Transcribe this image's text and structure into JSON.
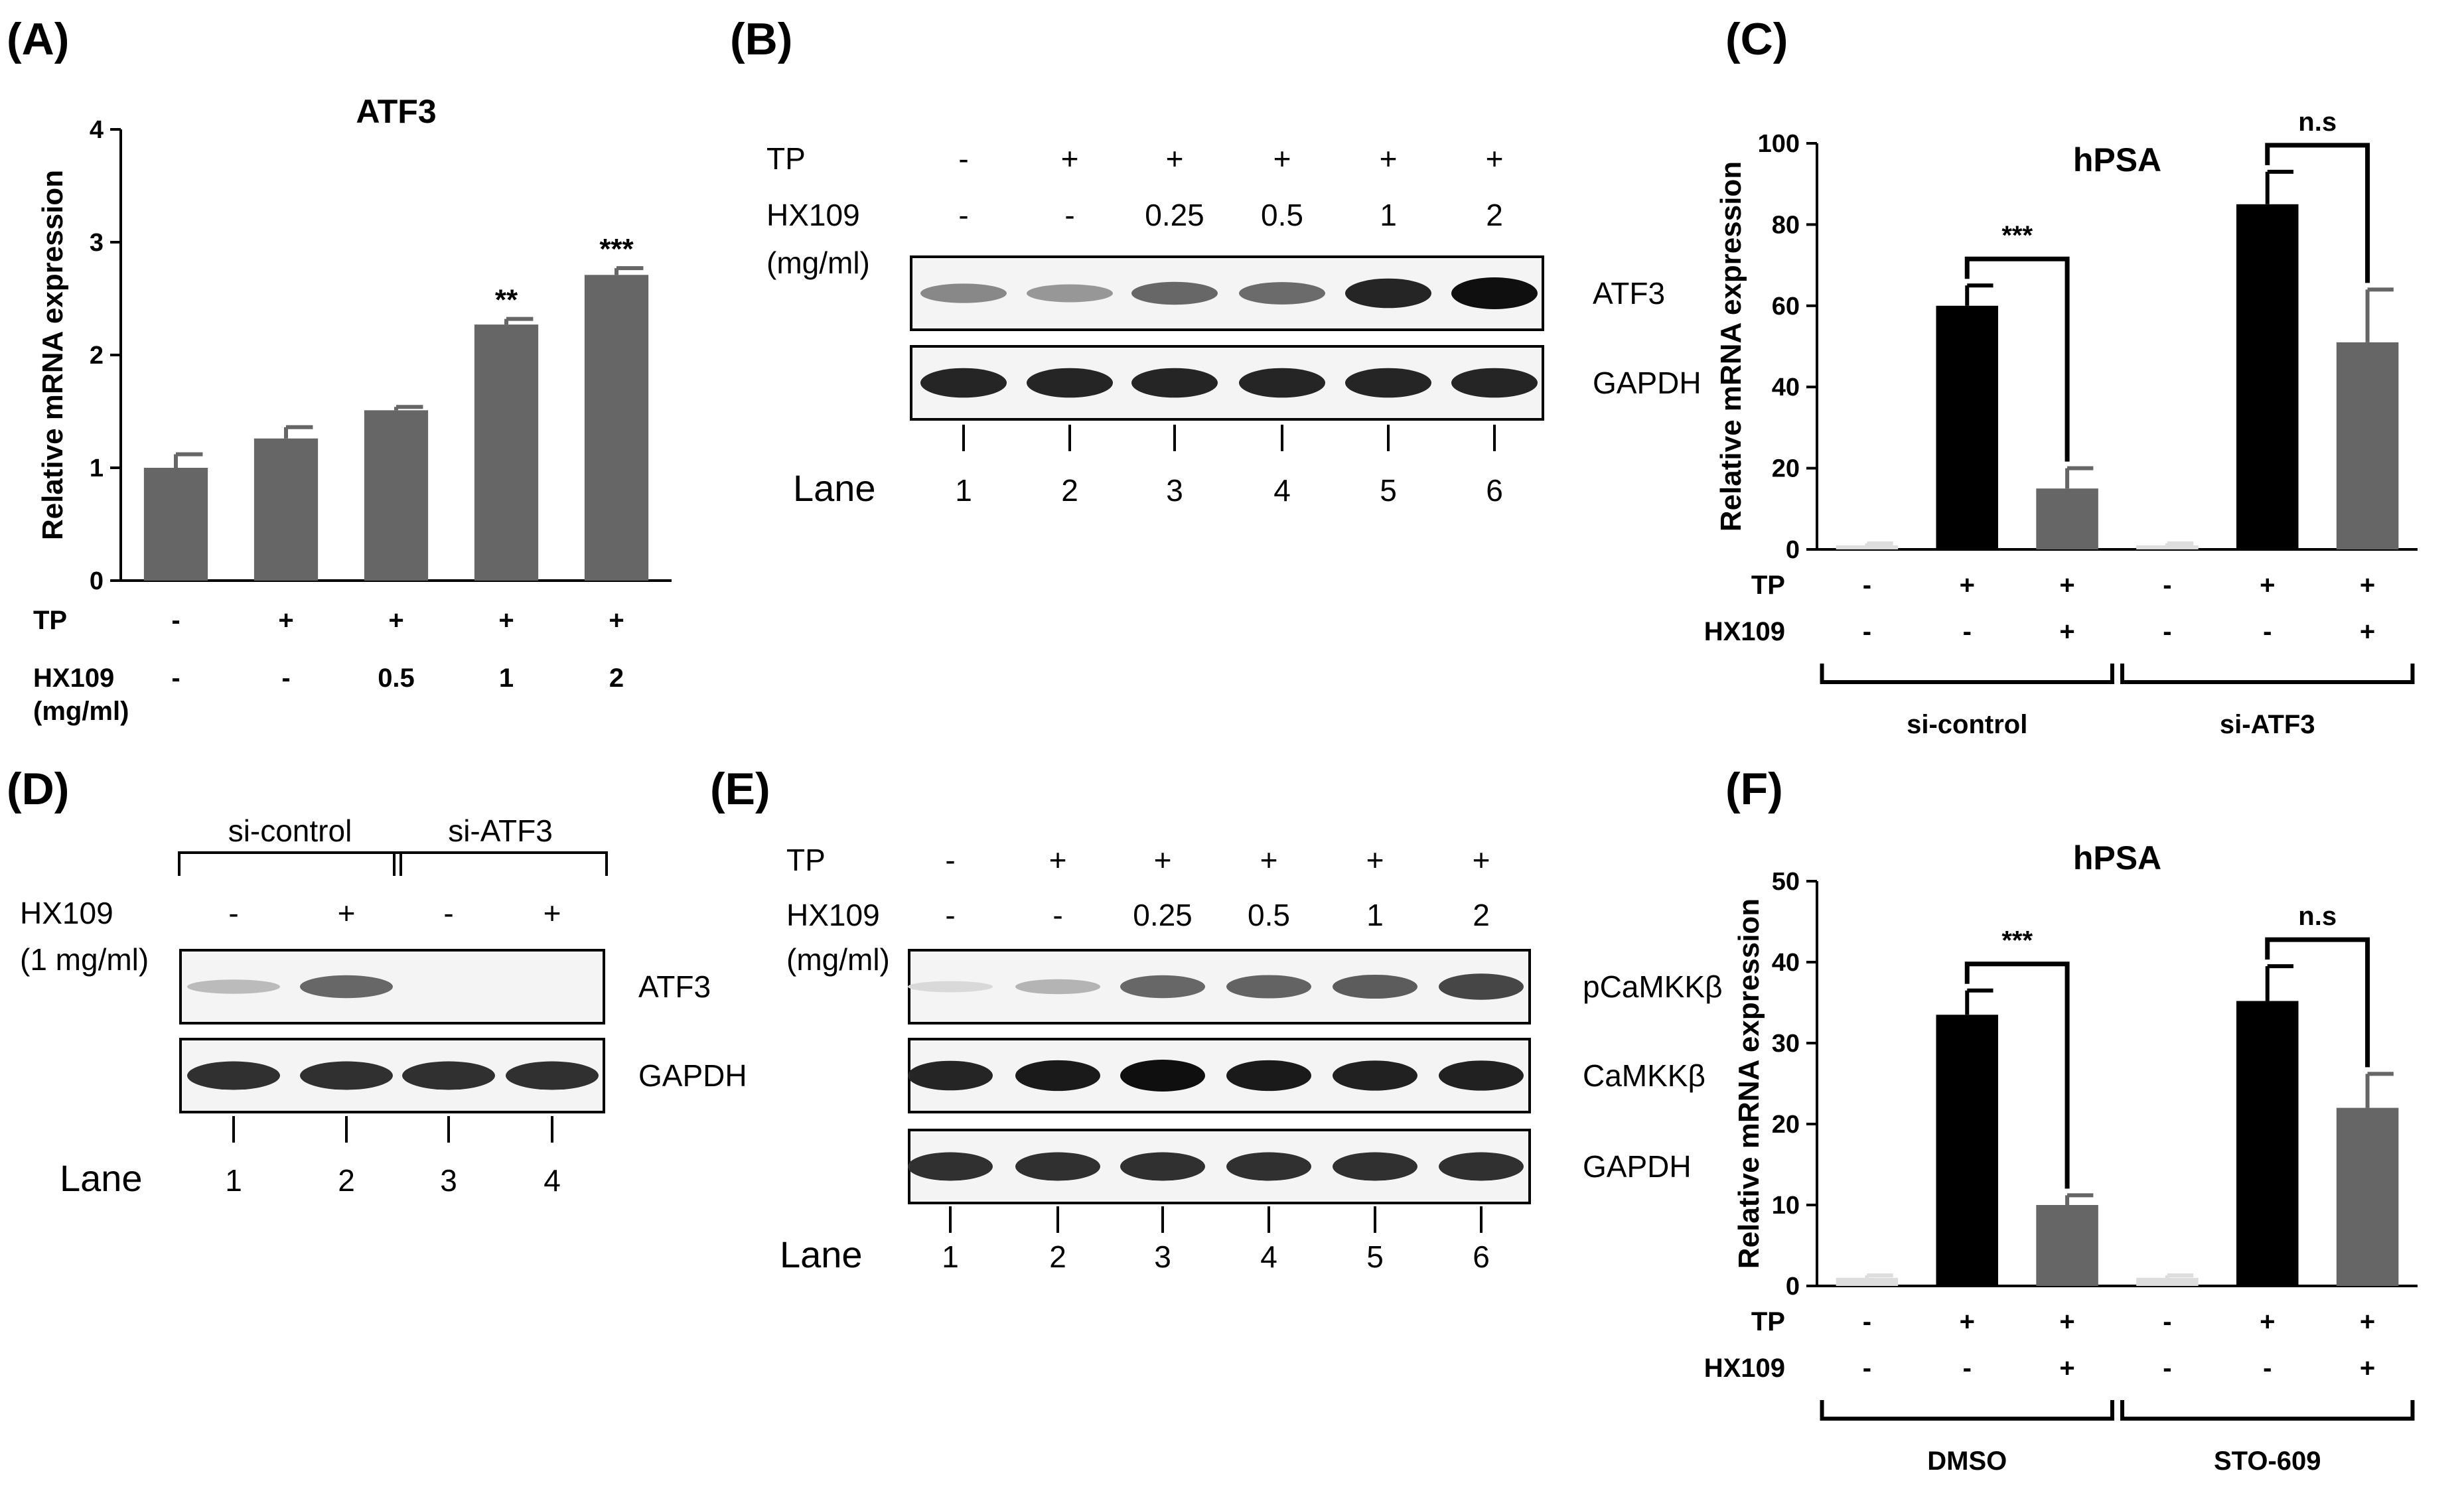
{
  "panels": [
    {
      "id": "A",
      "label": "(A)",
      "type": "bar",
      "title": "ATF3",
      "ylabel": "Relative mRNA expression",
      "ylim": [
        0,
        4
      ],
      "yticks": [
        0,
        1,
        2,
        3,
        4
      ],
      "rows": [
        {
          "label": "TP",
          "values": [
            "-",
            "+",
            "+",
            "+",
            "+"
          ]
        },
        {
          "label": "HX109",
          "values": [
            "-",
            "-",
            "0.5",
            "1",
            "2"
          ]
        }
      ],
      "row_unit": "(mg/ml)",
      "values": [
        1.0,
        1.26,
        1.51,
        2.27,
        2.71
      ],
      "errors": [
        0.12,
        0.1,
        0.03,
        0.05,
        0.06
      ],
      "significance": [
        "",
        "",
        "",
        "**",
        "***"
      ],
      "bar_color": "#666666"
    },
    {
      "id": "B",
      "label": "(B)",
      "type": "blot",
      "rows": [
        {
          "label": "TP",
          "values": [
            "-",
            "+",
            "+",
            "+",
            "+",
            "+"
          ]
        },
        {
          "label": "HX109",
          "values": [
            "-",
            "-",
            "0.25",
            "0.5",
            "1",
            "2"
          ]
        }
      ],
      "row_unit": "(mg/ml)",
      "blots": [
        {
          "label": "ATF3",
          "intensities": [
            0.45,
            0.38,
            0.6,
            0.58,
            0.9,
            1.0
          ]
        },
        {
          "label": "GAPDH",
          "intensities": [
            0.9,
            0.9,
            0.9,
            0.9,
            0.9,
            0.9
          ]
        }
      ],
      "lane_label": "Lane",
      "lanes": [
        "1",
        "2",
        "3",
        "4",
        "5",
        "6"
      ]
    },
    {
      "id": "C",
      "label": "(C)",
      "type": "bar",
      "title": "hPSA",
      "ylabel": "Relative mRNA expression",
      "ylim": [
        0,
        100
      ],
      "yticks": [
        0,
        20,
        40,
        60,
        80,
        100
      ],
      "rows": [
        {
          "label": "TP",
          "values": [
            "-",
            "+",
            "+",
            "-",
            "+",
            "+"
          ]
        },
        {
          "label": "HX109",
          "values": [
            "-",
            "-",
            "+",
            "-",
            "-",
            "+"
          ]
        }
      ],
      "values": [
        1,
        60,
        15,
        1,
        85,
        51
      ],
      "errors": [
        0.5,
        5,
        5,
        0.5,
        8,
        13
      ],
      "bar_colors": [
        "#dddddd",
        "#000000",
        "#666666",
        "#dddddd",
        "#000000",
        "#666666"
      ],
      "comparisons": [
        {
          "from": 1,
          "to": 2,
          "text": "***"
        },
        {
          "from": 4,
          "to": 5,
          "text": "n.s"
        }
      ],
      "groups": [
        {
          "label": "si-control",
          "from": 0,
          "to": 2
        },
        {
          "label": "si-ATF3",
          "from": 3,
          "to": 5
        }
      ]
    },
    {
      "id": "D",
      "label": "(D)",
      "type": "blot",
      "groups": [
        {
          "label": "si-control",
          "from": 0,
          "to": 1
        },
        {
          "label": "si-ATF3",
          "from": 2,
          "to": 3
        }
      ],
      "rows": [
        {
          "label": "HX109",
          "values": [
            "-",
            "+",
            "-",
            "+"
          ]
        }
      ],
      "row_unit": "(1 mg/ml)",
      "blots": [
        {
          "label": "ATF3",
          "intensities": [
            0.22,
            0.6,
            0.0,
            0.0
          ]
        },
        {
          "label": "GAPDH",
          "intensities": [
            0.85,
            0.85,
            0.85,
            0.85
          ]
        }
      ],
      "lane_label": "Lane",
      "lanes": [
        "1",
        "2",
        "3",
        "4"
      ]
    },
    {
      "id": "E",
      "label": "(E)",
      "type": "blot",
      "rows": [
        {
          "label": "TP",
          "values": [
            "-",
            "+",
            "+",
            "+",
            "+",
            "+"
          ]
        },
        {
          "label": "HX109",
          "values": [
            "-",
            "-",
            "0.25",
            "0.5",
            "1",
            "2"
          ]
        }
      ],
      "row_unit": "(mg/ml)",
      "blots": [
        {
          "label": "pCaMKKβ",
          "intensities": [
            0.08,
            0.25,
            0.6,
            0.62,
            0.65,
            0.75
          ]
        },
        {
          "label": "CaMKKβ",
          "intensities": [
            0.9,
            0.95,
            1.0,
            0.95,
            0.92,
            0.92
          ]
        },
        {
          "label": "GAPDH",
          "intensities": [
            0.85,
            0.85,
            0.85,
            0.85,
            0.85,
            0.85
          ]
        }
      ],
      "lane_label": "Lane",
      "lanes": [
        "1",
        "2",
        "3",
        "4",
        "5",
        "6"
      ]
    },
    {
      "id": "F",
      "label": "(F)",
      "type": "bar",
      "title": "hPSA",
      "ylabel": "Relative mRNA expression",
      "ylim": [
        0,
        50
      ],
      "yticks": [
        0,
        10,
        20,
        30,
        40,
        50
      ],
      "rows": [
        {
          "label": "TP",
          "values": [
            "-",
            "+",
            "+",
            "-",
            "+",
            "+"
          ]
        },
        {
          "label": "HX109",
          "values": [
            "-",
            "-",
            "+",
            "-",
            "-",
            "+"
          ]
        }
      ],
      "values": [
        1,
        33.5,
        10,
        1,
        35.2,
        22
      ],
      "errors": [
        0.3,
        3,
        1.2,
        0.3,
        4.3,
        4.2
      ],
      "bar_colors": [
        "#dddddd",
        "#000000",
        "#666666",
        "#dddddd",
        "#000000",
        "#666666"
      ],
      "comparisons": [
        {
          "from": 1,
          "to": 2,
          "text": "***"
        },
        {
          "from": 4,
          "to": 5,
          "text": "n.s"
        }
      ],
      "groups": [
        {
          "label": "DMSO",
          "from": 0,
          "to": 2
        },
        {
          "label": "STO-609",
          "from": 3,
          "to": 5
        }
      ]
    }
  ]
}
